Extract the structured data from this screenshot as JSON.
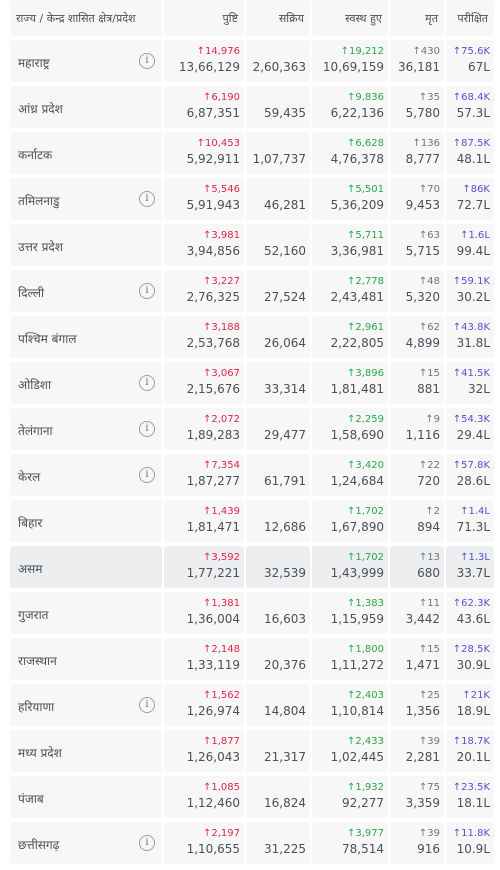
{
  "header": {
    "state": "राज्य / केन्द्र शासित क्षेत्र/प्रदेश",
    "confirmed": "पुष्टि",
    "active": "सक्रिय",
    "recovered": "स्वस्थ हुए",
    "deceased": "मृत",
    "tested": "परीक्षित"
  },
  "info_glyph": "i",
  "rows": [
    {
      "state": "महाराष्ट्र",
      "info": true,
      "confirmed_delta": "↑14,976",
      "confirmed": "13,66,129",
      "active": "2,60,363",
      "recovered_delta": "↑19,212",
      "recovered": "10,69,159",
      "deceased_delta": "↑430",
      "deceased": "36,181",
      "tested_delta": "↑75.6K",
      "tested": "67L"
    },
    {
      "state": "आंध्र प्रदेश",
      "info": false,
      "confirmed_delta": "↑6,190",
      "confirmed": "6,87,351",
      "active": "59,435",
      "recovered_delta": "↑9,836",
      "recovered": "6,22,136",
      "deceased_delta": "↑35",
      "deceased": "5,780",
      "tested_delta": "↑68.4K",
      "tested": "57.3L"
    },
    {
      "state": "कर्नाटक",
      "info": false,
      "confirmed_delta": "↑10,453",
      "confirmed": "5,92,911",
      "active": "1,07,737",
      "recovered_delta": "↑6,628",
      "recovered": "4,76,378",
      "deceased_delta": "↑136",
      "deceased": "8,777",
      "tested_delta": "↑87.5K",
      "tested": "48.1L"
    },
    {
      "state": "तमिलनाडु",
      "info": true,
      "confirmed_delta": "↑5,546",
      "confirmed": "5,91,943",
      "active": "46,281",
      "recovered_delta": "↑5,501",
      "recovered": "5,36,209",
      "deceased_delta": "↑70",
      "deceased": "9,453",
      "tested_delta": "↑86K",
      "tested": "72.7L"
    },
    {
      "state": "उत्तर प्रदेश",
      "info": false,
      "confirmed_delta": "↑3,981",
      "confirmed": "3,94,856",
      "active": "52,160",
      "recovered_delta": "↑5,711",
      "recovered": "3,36,981",
      "deceased_delta": "↑63",
      "deceased": "5,715",
      "tested_delta": "↑1.6L",
      "tested": "99.4L"
    },
    {
      "state": "दिल्ली",
      "info": true,
      "confirmed_delta": "↑3,227",
      "confirmed": "2,76,325",
      "active": "27,524",
      "recovered_delta": "↑2,778",
      "recovered": "2,43,481",
      "deceased_delta": "↑48",
      "deceased": "5,320",
      "tested_delta": "↑59.1K",
      "tested": "30.2L"
    },
    {
      "state": "पश्चिम बंगाल",
      "info": false,
      "confirmed_delta": "↑3,188",
      "confirmed": "2,53,768",
      "active": "26,064",
      "recovered_delta": "↑2,961",
      "recovered": "2,22,805",
      "deceased_delta": "↑62",
      "deceased": "4,899",
      "tested_delta": "↑43.8K",
      "tested": "31.8L"
    },
    {
      "state": "ओडिशा",
      "info": true,
      "confirmed_delta": "↑3,067",
      "confirmed": "2,15,676",
      "active": "33,314",
      "recovered_delta": "↑3,896",
      "recovered": "1,81,481",
      "deceased_delta": "↑15",
      "deceased": "881",
      "tested_delta": "↑41.5K",
      "tested": "32L"
    },
    {
      "state": "तेलंगाना",
      "info": true,
      "confirmed_delta": "↑2,072",
      "confirmed": "1,89,283",
      "active": "29,477",
      "recovered_delta": "↑2,259",
      "recovered": "1,58,690",
      "deceased_delta": "↑9",
      "deceased": "1,116",
      "tested_delta": "↑54.3K",
      "tested": "29.4L"
    },
    {
      "state": "केरल",
      "info": true,
      "confirmed_delta": "↑7,354",
      "confirmed": "1,87,277",
      "active": "61,791",
      "recovered_delta": "↑3,420",
      "recovered": "1,24,684",
      "deceased_delta": "↑22",
      "deceased": "720",
      "tested_delta": "↑57.8K",
      "tested": "28.6L"
    },
    {
      "state": "बिहार",
      "info": false,
      "confirmed_delta": "↑1,439",
      "confirmed": "1,81,471",
      "active": "12,686",
      "recovered_delta": "↑1,702",
      "recovered": "1,67,890",
      "deceased_delta": "↑2",
      "deceased": "894",
      "tested_delta": "↑1.4L",
      "tested": "71.3L"
    },
    {
      "state": "असम",
      "info": false,
      "highlight": true,
      "confirmed_delta": "↑3,592",
      "confirmed": "1,77,221",
      "active": "32,539",
      "recovered_delta": "↑1,702",
      "recovered": "1,43,999",
      "deceased_delta": "↑13",
      "deceased": "680",
      "tested_delta": "↑1.3L",
      "tested": "33.7L"
    },
    {
      "state": "गुजरात",
      "info": false,
      "confirmed_delta": "↑1,381",
      "confirmed": "1,36,004",
      "active": "16,603",
      "recovered_delta": "↑1,383",
      "recovered": "1,15,959",
      "deceased_delta": "↑11",
      "deceased": "3,442",
      "tested_delta": "↑62.3K",
      "tested": "43.6L"
    },
    {
      "state": "राजस्थान",
      "info": false,
      "confirmed_delta": "↑2,148",
      "confirmed": "1,33,119",
      "active": "20,376",
      "recovered_delta": "↑1,800",
      "recovered": "1,11,272",
      "deceased_delta": "↑15",
      "deceased": "1,471",
      "tested_delta": "↑28.5K",
      "tested": "30.9L"
    },
    {
      "state": "हरियाणा",
      "info": true,
      "confirmed_delta": "↑1,562",
      "confirmed": "1,26,974",
      "active": "14,804",
      "recovered_delta": "↑2,403",
      "recovered": "1,10,814",
      "deceased_delta": "↑25",
      "deceased": "1,356",
      "tested_delta": "↑21K",
      "tested": "18.9L"
    },
    {
      "state": "मध्य प्रदेश",
      "info": false,
      "confirmed_delta": "↑1,877",
      "confirmed": "1,26,043",
      "active": "21,317",
      "recovered_delta": "↑2,433",
      "recovered": "1,02,445",
      "deceased_delta": "↑39",
      "deceased": "2,281",
      "tested_delta": "↑18.7K",
      "tested": "20.1L"
    },
    {
      "state": "पंजाब",
      "info": false,
      "confirmed_delta": "↑1,085",
      "confirmed": "1,12,460",
      "active": "16,824",
      "recovered_delta": "↑1,932",
      "recovered": "92,277",
      "deceased_delta": "↑75",
      "deceased": "3,359",
      "tested_delta": "↑23.5K",
      "tested": "18.1L"
    },
    {
      "state": "छत्तीसगढ़",
      "info": true,
      "confirmed_delta": "↑2,197",
      "confirmed": "1,10,655",
      "active": "31,225",
      "recovered_delta": "↑3,977",
      "recovered": "78,514",
      "deceased_delta": "↑39",
      "deceased": "916",
      "tested_delta": "↑11.8K",
      "tested": "10.9L"
    }
  ]
}
